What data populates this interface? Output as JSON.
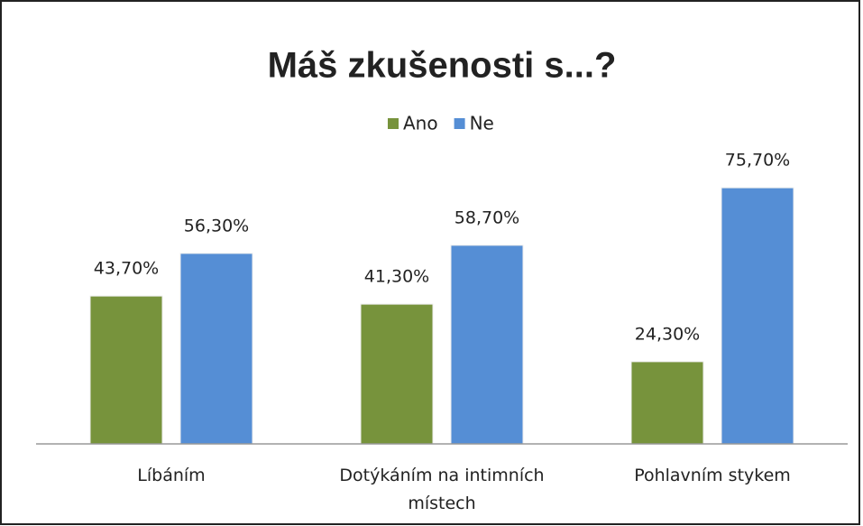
{
  "chart_data": {
    "type": "bar",
    "title": "Máš zkušenosti s...?",
    "categories": [
      "Líbáním",
      "Dotýkáním na intimních místech",
      "Pohlavním stykem"
    ],
    "series": [
      {
        "name": "Ano",
        "color": "#77933c",
        "values": [
          43.7,
          41.3,
          24.3
        ],
        "value_labels": [
          "43,70%",
          "41,30%",
          "24,30%"
        ]
      },
      {
        "name": "Ne",
        "color": "#558ed5",
        "values": [
          56.3,
          58.7,
          75.7
        ],
        "value_labels": [
          "56,30%",
          "58,70%",
          "75,70%"
        ]
      }
    ],
    "ylim": [
      0,
      80
    ],
    "legend": "top"
  }
}
